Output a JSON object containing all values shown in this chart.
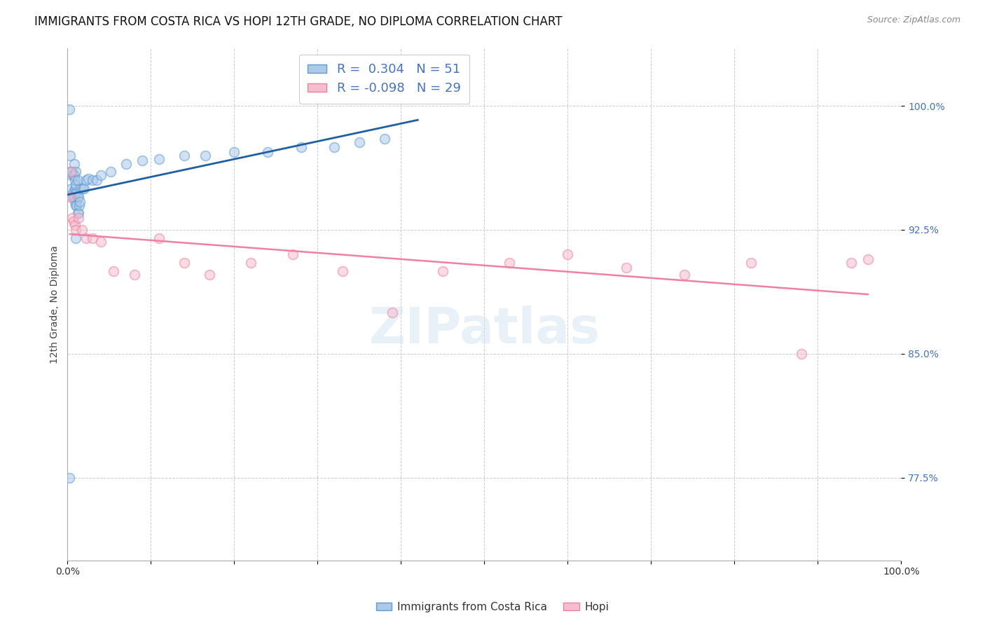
{
  "title": "IMMIGRANTS FROM COSTA RICA VS HOPI 12TH GRADE, NO DIPLOMA CORRELATION CHART",
  "source": "Source: ZipAtlas.com",
  "ylabel": "12th Grade, No Diploma",
  "watermark": "ZIPatlas",
  "xlim": [
    0.0,
    1.0
  ],
  "ylim": [
    0.725,
    1.035
  ],
  "y_tick_values": [
    0.775,
    0.85,
    0.925,
    1.0
  ],
  "blue_R": 0.304,
  "blue_N": 51,
  "pink_R": -0.098,
  "pink_N": 29,
  "blue_color": "#adc9e8",
  "blue_edge_color": "#5b9bd5",
  "pink_color": "#f5bdd0",
  "pink_edge_color": "#f080a0",
  "blue_line_color": "#1f5fa6",
  "pink_line_color": "#f080a0",
  "legend_label_blue": "Immigrants from Costa Rica",
  "legend_label_pink": "Hopi",
  "blue_x": [
    0.002,
    0.003,
    0.003,
    0.005,
    0.005,
    0.006,
    0.006,
    0.007,
    0.007,
    0.007,
    0.008,
    0.008,
    0.008,
    0.009,
    0.009,
    0.009,
    0.01,
    0.01,
    0.01,
    0.01,
    0.011,
    0.011,
    0.012,
    0.012,
    0.012,
    0.013,
    0.013,
    0.014,
    0.015,
    0.016,
    0.018,
    0.02,
    0.022,
    0.025,
    0.03,
    0.035,
    0.04,
    0.052,
    0.07,
    0.09,
    0.11,
    0.14,
    0.165,
    0.2,
    0.24,
    0.28,
    0.32,
    0.35,
    0.38,
    0.01,
    0.002
  ],
  "blue_y": [
    0.998,
    0.97,
    0.96,
    0.958,
    0.95,
    0.945,
    0.96,
    0.945,
    0.958,
    0.948,
    0.945,
    0.958,
    0.965,
    0.942,
    0.95,
    0.955,
    0.94,
    0.948,
    0.952,
    0.96,
    0.94,
    0.947,
    0.935,
    0.945,
    0.955,
    0.935,
    0.945,
    0.94,
    0.942,
    0.95,
    0.95,
    0.95,
    0.955,
    0.956,
    0.955,
    0.955,
    0.958,
    0.96,
    0.965,
    0.967,
    0.968,
    0.97,
    0.97,
    0.972,
    0.972,
    0.975,
    0.975,
    0.978,
    0.98,
    0.92,
    0.775
  ],
  "pink_x": [
    0.003,
    0.004,
    0.006,
    0.007,
    0.009,
    0.01,
    0.013,
    0.017,
    0.022,
    0.03,
    0.04,
    0.055,
    0.08,
    0.11,
    0.14,
    0.17,
    0.22,
    0.27,
    0.33,
    0.39,
    0.45,
    0.53,
    0.6,
    0.67,
    0.74,
    0.82,
    0.88,
    0.94,
    0.96
  ],
  "pink_y": [
    0.945,
    0.96,
    0.932,
    0.93,
    0.928,
    0.925,
    0.932,
    0.925,
    0.92,
    0.92,
    0.918,
    0.9,
    0.898,
    0.92,
    0.905,
    0.898,
    0.905,
    0.91,
    0.9,
    0.875,
    0.9,
    0.905,
    0.91,
    0.902,
    0.898,
    0.905,
    0.85,
    0.905,
    0.907
  ],
  "grid_color": "#cccccc",
  "background_color": "#ffffff",
  "title_fontsize": 12,
  "tick_label_color_y": "#4472c4",
  "tick_label_color_x": "#333333",
  "tick_fontsize": 10,
  "marker_size": 100,
  "marker_alpha": 0.55,
  "marker_lw": 1.2
}
